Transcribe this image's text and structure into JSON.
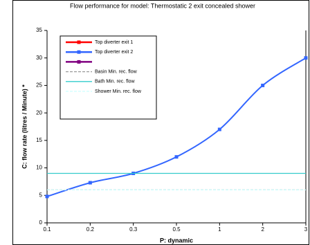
{
  "chart_data": {
    "type": "line",
    "title": "Flow performance for model: Thermostatic 2 exit concealed shower",
    "x_label": "P: dynamic",
    "y_label": "C: flow rate (litres / Minute) *",
    "categories": [
      "0.1",
      "0.2",
      "0.3",
      "0.5",
      "1",
      "2",
      "3"
    ],
    "ylim": [
      0,
      35
    ],
    "yticks": [
      0,
      5,
      10,
      15,
      20,
      25,
      30,
      35
    ],
    "grid": false,
    "legend": "top-left",
    "series": [
      {
        "name": "Top diverter exit 1",
        "color": "#ff0000",
        "marker": "square",
        "values": [
          null,
          null,
          null,
          null,
          null,
          null,
          null
        ]
      },
      {
        "name": "Top diverter exit 2",
        "color": "#3366ff",
        "marker": "square",
        "values": [
          4.8,
          7.3,
          9,
          12,
          17,
          25,
          30
        ]
      },
      {
        "color": "#800080",
        "marker": "square",
        "values": [
          null,
          null,
          null,
          null,
          null,
          null,
          null
        ]
      },
      {
        "name": "Basin Min. rec. flow",
        "color": "#999999",
        "dash": true,
        "values": [
          6,
          6,
          6,
          6,
          6,
          6,
          6
        ]
      },
      {
        "name": "Bath Min. rec. flow",
        "color": "#33cccc",
        "values": [
          9,
          9,
          9,
          9,
          9,
          9,
          9
        ]
      },
      {
        "name": "Shower Min. rec. flow",
        "color": "#ccffff",
        "dash": true,
        "values": [
          6,
          6,
          6,
          6,
          6,
          6,
          6
        ]
      }
    ]
  }
}
